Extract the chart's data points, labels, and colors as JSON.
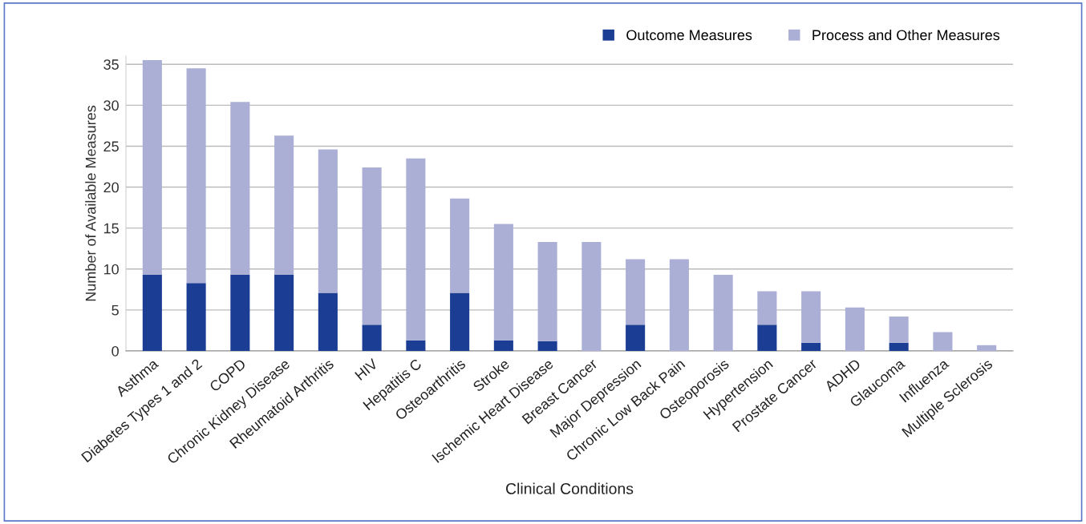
{
  "chart_data": {
    "type": "bar",
    "stacked": true,
    "xlabel": "Clinical Conditions",
    "ylabel": "Number of Available Measures",
    "categories": [
      "Asthma",
      "Diabetes Types 1 and 2",
      "COPD",
      "Chronic Kidney Disease",
      "Rheumatoid Arthritis",
      "HIV",
      "Hepatitis C",
      "Osteoarthritis",
      "Stroke",
      "Ischemic Heart Disease",
      "Breast Cancer",
      "Major Depression",
      "Chronic Low Back Pain",
      "Osteoporosis",
      "Hypertension",
      "Prostate Cancer",
      "ADHD",
      "Glaucoma",
      "Influenza",
      "Multiple Sclerosis"
    ],
    "series": [
      {
        "name": "Outcome Measures",
        "color": "#1b3d93",
        "values": [
          9.3,
          8.3,
          9.3,
          9.3,
          7.1,
          3.2,
          1.3,
          7.1,
          1.3,
          1.2,
          0,
          3.2,
          0,
          0,
          3.2,
          1.0,
          0,
          1.0,
          0,
          0
        ]
      },
      {
        "name": "Process and Other Measures",
        "color": "#abafd6",
        "values": [
          26.2,
          26.2,
          21.1,
          17.0,
          17.5,
          19.2,
          22.2,
          11.5,
          14.2,
          12.1,
          13.3,
          8.0,
          11.2,
          9.3,
          4.1,
          6.3,
          5.3,
          3.2,
          2.3,
          0.7
        ]
      }
    ],
    "ylim": [
      0,
      36
    ],
    "yticks": [
      0,
      5,
      10,
      15,
      20,
      25,
      30,
      35
    ],
    "grid": "y",
    "legend": "top right"
  }
}
